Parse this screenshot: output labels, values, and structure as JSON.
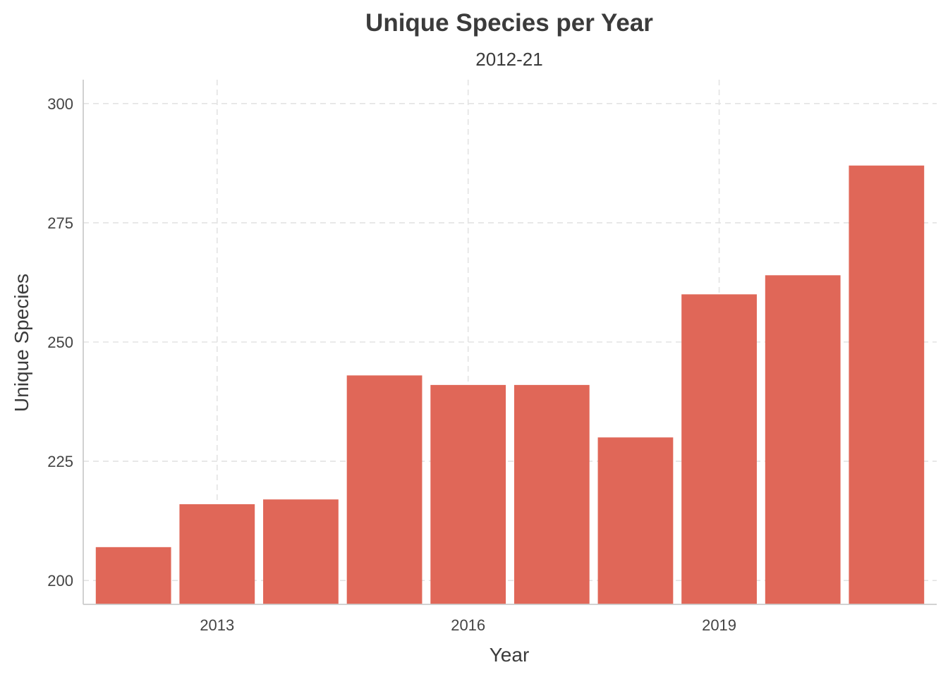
{
  "colors": {
    "bar": "#e06758",
    "grid": "#e3e3e3",
    "axis": "#cccccc",
    "text": "#3b3b3b"
  },
  "chart_data": {
    "type": "bar",
    "title": "Unique Species per Year",
    "subtitle": "2012-21",
    "xlabel": "Year",
    "ylabel": "Unique Species",
    "categories": [
      2012,
      2013,
      2014,
      2015,
      2016,
      2017,
      2018,
      2019,
      2020,
      2021
    ],
    "values": [
      207,
      216,
      217,
      243,
      241,
      241,
      230,
      260,
      264,
      287
    ],
    "ylim": [
      195,
      305
    ],
    "xlim": [
      2011.4,
      2021.6
    ],
    "y_ticks": [
      200,
      225,
      250,
      275,
      300
    ],
    "x_ticks": [
      2013,
      2016,
      2019
    ],
    "grid": true,
    "grid_style": "dashed"
  }
}
